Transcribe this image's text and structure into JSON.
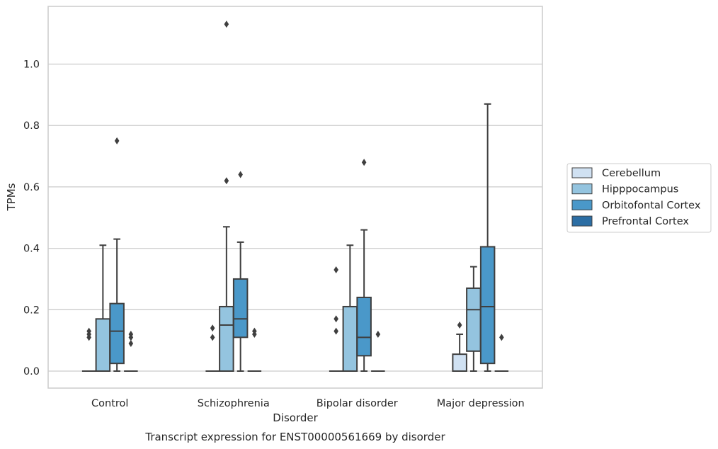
{
  "chart_data": {
    "type": "box",
    "title": "",
    "caption": "Transcript expression for ENST00000561669 by disorder",
    "xlabel": "Disorder",
    "ylabel": "TPMs",
    "ylim": [
      -0.055,
      1.19
    ],
    "yticks": [
      "0.0",
      "0.2",
      "0.4",
      "0.6",
      "0.8",
      "1.0"
    ],
    "grid": true,
    "legend_position": "right",
    "categories": [
      "Control",
      "Schizophrenia",
      "Bipolar disorder",
      "Major depression"
    ],
    "series": [
      {
        "name": "Cerebellum",
        "color": "#d0e1f2",
        "boxes": [
          {
            "q1": 0,
            "median": 0,
            "q3": 0,
            "whislo": 0,
            "whishi": 0,
            "fliers": [
              0.11,
              0.12,
              0.13
            ]
          },
          {
            "q1": 0,
            "median": 0,
            "q3": 0,
            "whislo": 0,
            "whishi": 0,
            "fliers": [
              0.11,
              0.14
            ]
          },
          {
            "q1": 0,
            "median": 0,
            "q3": 0,
            "whislo": 0,
            "whishi": 0,
            "fliers": [
              0.13,
              0.17,
              0.33
            ]
          },
          {
            "q1": 0,
            "median": 0,
            "q3": 0.055,
            "whislo": 0,
            "whishi": 0.12,
            "fliers": [
              0.15
            ]
          }
        ]
      },
      {
        "name": "Hipppocampus",
        "color": "#94c4df",
        "boxes": [
          {
            "q1": 0,
            "median": 0,
            "q3": 0.17,
            "whislo": 0,
            "whishi": 0.41,
            "fliers": []
          },
          {
            "q1": 0,
            "median": 0.15,
            "q3": 0.21,
            "whislo": 0,
            "whishi": 0.47,
            "fliers": [
              0.62,
              1.13
            ]
          },
          {
            "q1": 0,
            "median": 0,
            "q3": 0.21,
            "whislo": 0,
            "whishi": 0.41,
            "fliers": []
          },
          {
            "q1": 0.065,
            "median": 0.2,
            "q3": 0.27,
            "whislo": 0,
            "whishi": 0.34,
            "fliers": []
          }
        ]
      },
      {
        "name": "Orbitofontal Cortex",
        "color": "#4a98c9",
        "boxes": [
          {
            "q1": 0.025,
            "median": 0.13,
            "q3": 0.22,
            "whislo": 0,
            "whishi": 0.43,
            "fliers": [
              0.75
            ]
          },
          {
            "q1": 0.11,
            "median": 0.17,
            "q3": 0.3,
            "whislo": 0,
            "whishi": 0.42,
            "fliers": [
              0.64
            ]
          },
          {
            "q1": 0.05,
            "median": 0.11,
            "q3": 0.24,
            "whislo": 0,
            "whishi": 0.46,
            "fliers": [
              0.68
            ]
          },
          {
            "q1": 0.025,
            "median": 0.21,
            "q3": 0.405,
            "whislo": 0,
            "whishi": 0.87,
            "fliers": []
          }
        ]
      },
      {
        "name": "Prefrontal Cortex",
        "color": "#2c6ea4",
        "boxes": [
          {
            "q1": 0,
            "median": 0,
            "q3": 0,
            "whislo": 0,
            "whishi": 0,
            "fliers": [
              0.09,
              0.11,
              0.12
            ]
          },
          {
            "q1": 0,
            "median": 0,
            "q3": 0,
            "whislo": 0,
            "whishi": 0,
            "fliers": [
              0.12,
              0.13
            ]
          },
          {
            "q1": 0,
            "median": 0,
            "q3": 0,
            "whislo": 0,
            "whishi": 0,
            "fliers": [
              0.12
            ]
          },
          {
            "q1": 0,
            "median": 0,
            "q3": 0,
            "whislo": 0,
            "whishi": 0,
            "fliers": [
              0.11
            ]
          }
        ]
      }
    ]
  }
}
